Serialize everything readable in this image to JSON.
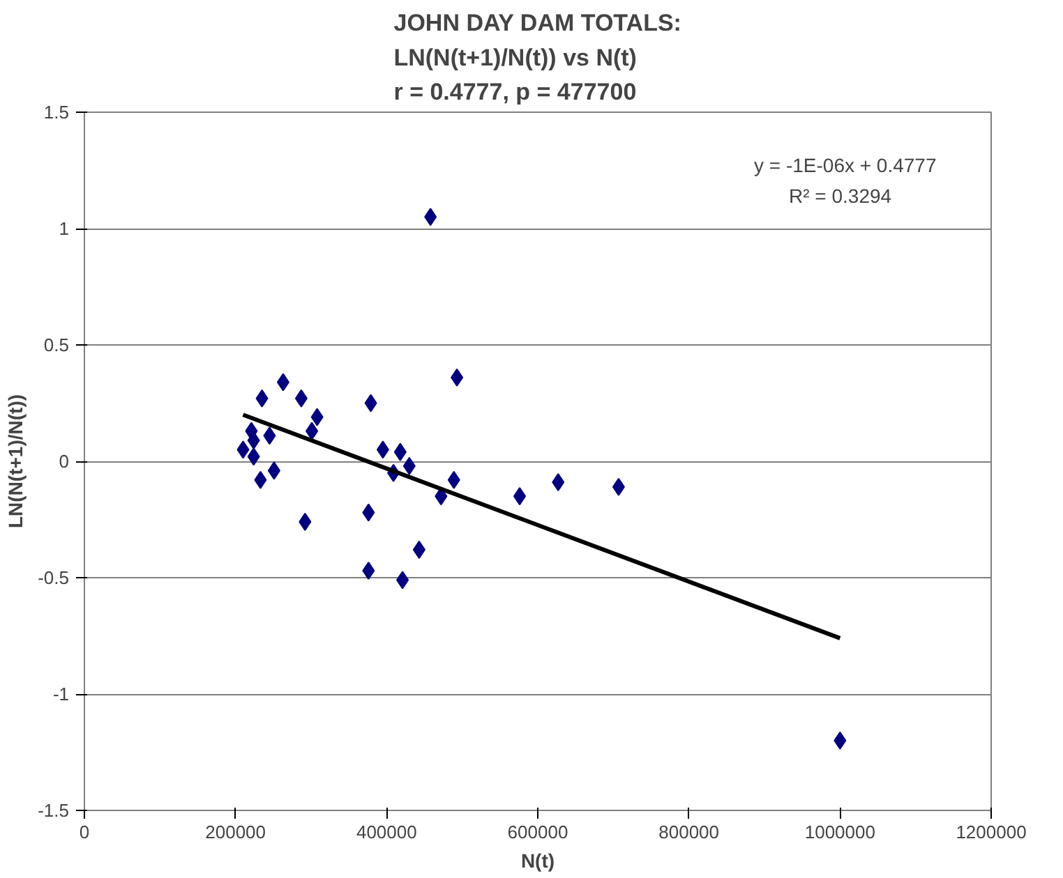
{
  "chart_data": {
    "type": "scatter",
    "title": "JOHN DAY DAM TOTALS:\nLN(N(t+1)/N(t)) vs N(t)\nr = 0.4777, p = 477700",
    "xlabel": "N(t)",
    "ylabel": "LN(N(t+1)/N(t))",
    "series": [
      {
        "color": "#000080",
        "marker": "diamond",
        "x": [
          210000,
          221000,
          224000,
          224000,
          235000,
          263000,
          287000,
          233000,
          251000,
          245000,
          308000,
          301000,
          292000,
          379000,
          376000,
          376000,
          421000,
          443000,
          395000,
          418000,
          409000,
          430000,
          493000,
          472000,
          489000,
          576000,
          627000,
          707000,
          458000,
          1000000
        ],
        "values": [
          0.05,
          0.13,
          0.09,
          0.02,
          0.27,
          0.34,
          0.27,
          -0.08,
          -0.04,
          0.11,
          0.19,
          0.13,
          -0.26,
          0.25,
          -0.22,
          -0.47,
          -0.51,
          -0.38,
          0.05,
          0.04,
          -0.05,
          -0.02,
          0.36,
          -0.15,
          -0.08,
          -0.15,
          -0.09,
          -0.11,
          1.05,
          -1.2
        ]
      },
      {
        "type": "line",
        "marker": "none",
        "color": "#000000",
        "x": [
          210000,
          1000000
        ],
        "values": [
          0.2,
          -0.76
        ]
      }
    ],
    "xlim": [
      0,
      1200000
    ],
    "xticks": [
      0,
      200000,
      400000,
      600000,
      800000,
      1000000,
      1200000
    ],
    "ylim": [
      -1.5,
      1.5
    ],
    "yticks": [
      -1.5,
      -1,
      -0.5,
      0,
      0.5,
      1,
      1.5
    ],
    "grid": "y",
    "annotations": [
      "y = -1E-06x + 0.4777",
      "R² = 0.3294"
    ]
  }
}
